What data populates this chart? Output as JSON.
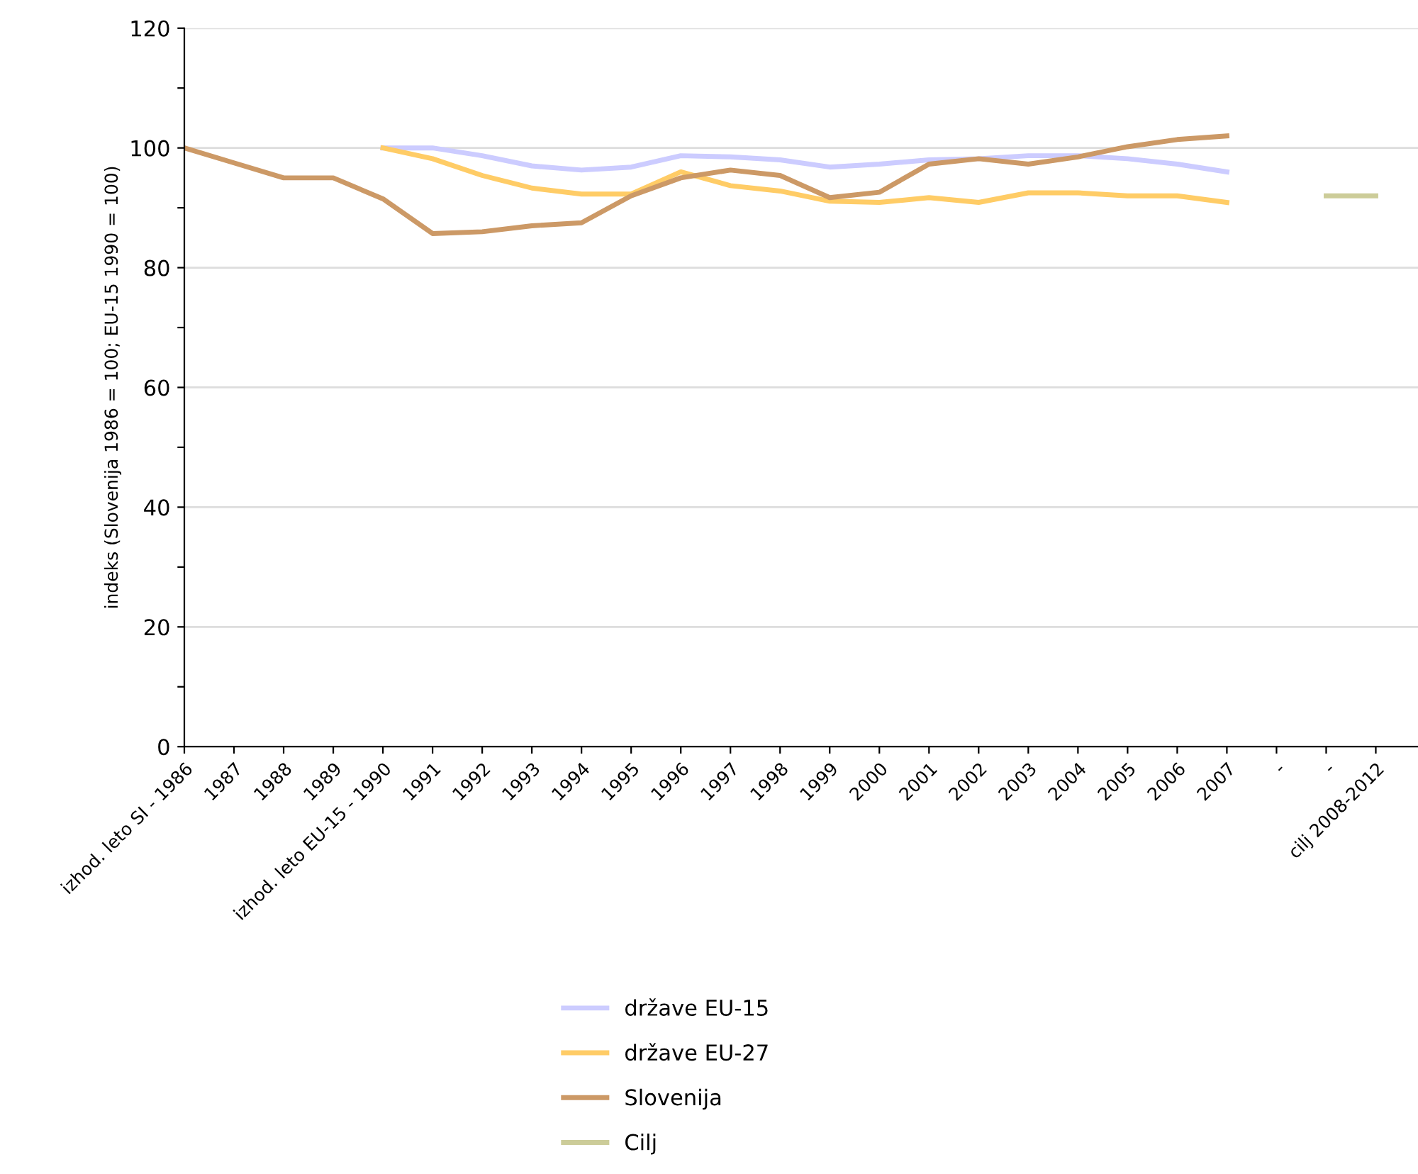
{
  "chart_data": {
    "type": "line",
    "ylabel": "indeks (Slovenija 1986 = 100; EU-15 1990 = 100)",
    "categories": [
      "izhod. leto SI - 1986",
      "1987",
      "1988",
      "1989",
      "izhod. leto EU-15 - 1990",
      "1991",
      "1992",
      "1993",
      "1994",
      "1995",
      "1996",
      "1997",
      "1998",
      "1999",
      "2000",
      "2001",
      "2002",
      "2003",
      "2004",
      "2005",
      "2006",
      "2007",
      "-",
      "-",
      "cilj 2008-2012"
    ],
    "series": [
      {
        "name": "države EU-15",
        "color": "#ccccff",
        "values": [
          null,
          null,
          null,
          null,
          100,
          100,
          98.7,
          97,
          96.3,
          96.8,
          98.7,
          98.5,
          98,
          96.8,
          97.3,
          98,
          98.2,
          98.7,
          98.7,
          98.2,
          97.3,
          96,
          null,
          null,
          null
        ]
      },
      {
        "name": "države EU-27",
        "color": "#ffcc66",
        "values": [
          null,
          null,
          null,
          null,
          100,
          98.2,
          95.4,
          93.3,
          92.3,
          92.3,
          96,
          93.7,
          92.8,
          91.1,
          90.9,
          91.7,
          90.9,
          92.5,
          92.5,
          92,
          92,
          90.9,
          null,
          null,
          null
        ]
      },
      {
        "name": "Slovenija",
        "color": "#cc9966",
        "values": [
          100,
          97.5,
          95,
          95,
          91.5,
          85.7,
          86,
          87,
          87.5,
          92,
          95,
          96.3,
          95.4,
          91.7,
          92.6,
          97.3,
          98.2,
          97.3,
          98.5,
          100.2,
          101.4,
          102,
          null,
          null,
          null
        ]
      },
      {
        "name": "Cilj",
        "color": "#cccc99",
        "values": [
          null,
          null,
          null,
          null,
          null,
          null,
          null,
          null,
          null,
          null,
          null,
          null,
          null,
          null,
          null,
          null,
          null,
          null,
          null,
          null,
          null,
          null,
          null,
          92,
          92
        ]
      }
    ],
    "ylim": [
      0,
      120
    ],
    "yticks": [
      0,
      {
        "value": 10,
        "label": null
      },
      20,
      {
        "value": 30,
        "label": null
      },
      40,
      {
        "value": 50,
        "label": null
      },
      60,
      {
        "value": 70,
        "label": null
      },
      80,
      {
        "value": 90,
        "label": null
      },
      100,
      {
        "value": 110,
        "label": null
      },
      120
    ],
    "grid": "y",
    "legend": "bottom",
    "marker": "none",
    "line_style": "solid"
  }
}
